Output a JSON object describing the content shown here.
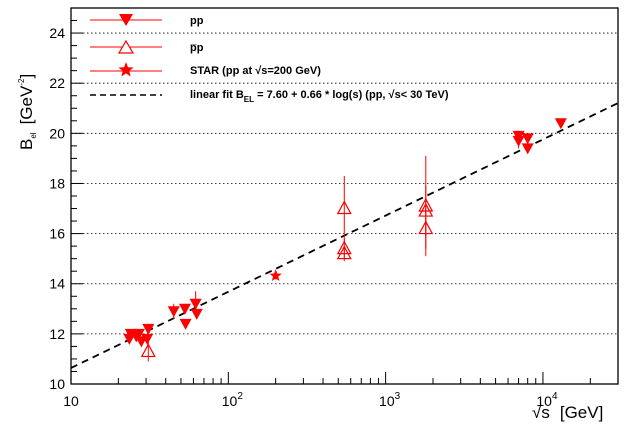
{
  "chart_data": {
    "type": "scatter",
    "x_scale": "log",
    "xlim": [
      10,
      30000
    ],
    "ylim": [
      10,
      25
    ],
    "grid": "horizontal",
    "legend_position": "top-left",
    "xlabel": {
      "sqrt": "s",
      "unit": "[GeV]"
    },
    "ylabel": {
      "main": "B",
      "sub": "el",
      "unit_pre": "[GeV",
      "unit_sup": "-2",
      "unit_post": "]"
    },
    "xticks": [
      {
        "value": 10,
        "label": "10",
        "sup": ""
      },
      {
        "value": 100,
        "label": "10",
        "sup": "2"
      },
      {
        "value": 1000,
        "label": "10",
        "sup": "3"
      },
      {
        "value": 10000,
        "label": "10",
        "sup": "4"
      }
    ],
    "yticks": [
      10,
      12,
      14,
      16,
      18,
      20,
      22,
      24
    ],
    "colors": {
      "pp": "#ff0000",
      "pbarp": "#ff0000",
      "star": "#ff0000",
      "fit": "#000000"
    },
    "series": [
      {
        "name": "pp",
        "marker": "triangle-down-filled",
        "points": [
          {
            "x": 23.5,
            "y": 11.8,
            "err": 0.1
          },
          {
            "x": 24.0,
            "y": 12.0,
            "err": 0.1
          },
          {
            "x": 26.0,
            "y": 11.9,
            "err": 0.1
          },
          {
            "x": 27.0,
            "y": 12.0,
            "err": 0.1
          },
          {
            "x": 28.0,
            "y": 11.7,
            "err": 0.1
          },
          {
            "x": 30.5,
            "y": 11.8,
            "err": 0.1
          },
          {
            "x": 31.0,
            "y": 12.2,
            "err": 0.15
          },
          {
            "x": 45.0,
            "y": 12.9,
            "err": 0.3
          },
          {
            "x": 53.0,
            "y": 13.0,
            "err": 0.2
          },
          {
            "x": 53.5,
            "y": 12.4,
            "err": 0.15
          },
          {
            "x": 62.0,
            "y": 13.2,
            "err": 0.5
          },
          {
            "x": 63.0,
            "y": 12.8,
            "err": 0.2
          },
          {
            "x": 7000,
            "y": 19.9,
            "err": 0.2
          },
          {
            "x": 7000,
            "y": 19.7,
            "err": 0.3
          },
          {
            "x": 8000,
            "y": 19.8,
            "err": 0.2
          },
          {
            "x": 8000,
            "y": 19.4,
            "err": 0.2
          },
          {
            "x": 13000,
            "y": 20.4,
            "err": 0.1
          }
        ]
      },
      {
        "name": "p̅p",
        "marker": "triangle-up-open",
        "points": [
          {
            "x": 31.0,
            "y": 11.3,
            "err": 0.4
          },
          {
            "x": 546,
            "y": 17.0,
            "err": 1.3
          },
          {
            "x": 546,
            "y": 15.4,
            "err": 0.4
          },
          {
            "x": 546,
            "y": 15.2,
            "err": 0.3
          },
          {
            "x": 1800,
            "y": 16.9,
            "err": 1.0
          },
          {
            "x": 1800,
            "y": 17.1,
            "err": 2.0
          },
          {
            "x": 1800,
            "y": 16.2,
            "err": 0.8
          }
        ]
      },
      {
        "name": "STAR (pp at ",
        "name_sqrt": "s",
        "name_post": "=200 GeV)",
        "marker": "star-filled",
        "points": [
          {
            "x": 200,
            "y": 14.32,
            "err": 0.15
          }
        ]
      }
    ],
    "fit": {
      "label_pre": "linear fit B",
      "label_sub": "EL",
      "label_mid": " = 7.60 + 0.66 * log(s) (pp, ",
      "label_sqrt": "s",
      "label_post": "< 30 TeV)",
      "intercept": 7.6,
      "slope": 0.66,
      "x_from": 10,
      "x_to": 30000
    }
  }
}
